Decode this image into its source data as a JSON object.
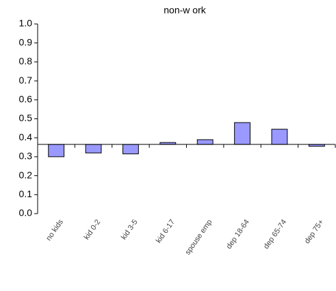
{
  "chart_data": {
    "type": "bar",
    "title": "non-w ork",
    "categories": [
      "no kids",
      "kid 0-2",
      "kid 3-5",
      "kid 6-17",
      "spouse emp",
      "dep 18-64",
      "dep 65-74",
      "dep 75+"
    ],
    "values": [
      0.3,
      0.32,
      0.315,
      0.375,
      0.39,
      0.48,
      0.445,
      0.355
    ],
    "color": "#9999ff",
    "ylim": [
      0,
      1
    ],
    "yticks": [
      {
        "value": 0,
        "label": "0.0"
      },
      0.1,
      0.2,
      0.3,
      0.4,
      0.5,
      0.6,
      0.7,
      0.8,
      0.9,
      {
        "value": 1,
        "label": "1.0"
      }
    ],
    "x_axis_crosses": 0.365,
    "grid": false
  }
}
